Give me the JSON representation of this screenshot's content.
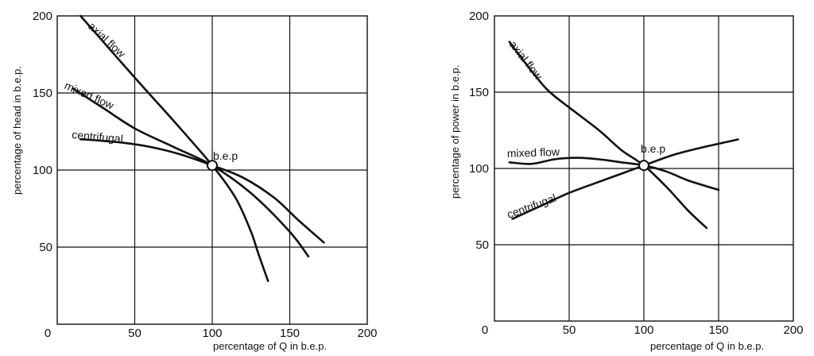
{
  "chart_data": [
    {
      "type": "line",
      "title": "",
      "xlabel": "percentage of Q in b.e.p.",
      "ylabel": "percentage of head in b.e.p.",
      "xlim": [
        0,
        200
      ],
      "ylim": [
        0,
        200
      ],
      "x_ticks": [
        0,
        50,
        100,
        150,
        200
      ],
      "y_ticks": [
        50,
        100,
        150,
        200
      ],
      "grid": true,
      "legend": "none",
      "series": [
        {
          "name": "axial flow",
          "points": [
            [
              15,
              200
            ],
            [
              50,
              160
            ],
            [
              75,
              132
            ],
            [
              100,
              103
            ],
            [
              115,
              82
            ],
            [
              125,
              60
            ],
            [
              130,
              45
            ],
            [
              136,
              28
            ]
          ]
        },
        {
          "name": "mixed flow",
          "points": [
            [
              10,
              153
            ],
            [
              30,
              140
            ],
            [
              50,
              127
            ],
            [
              75,
              115
            ],
            [
              100,
              103
            ],
            [
              125,
              85
            ],
            [
              150,
              60
            ],
            [
              162,
              44
            ]
          ]
        },
        {
          "name": "centrifugal",
          "points": [
            [
              15,
              120
            ],
            [
              40,
              118
            ],
            [
              60,
              115
            ],
            [
              80,
              110
            ],
            [
              100,
              103
            ],
            [
              120,
              95
            ],
            [
              140,
              82
            ],
            [
              155,
              68
            ],
            [
              172,
              53
            ]
          ]
        }
      ],
      "annotations": [
        {
          "text": "b.e.p",
          "x": 100,
          "y": 103,
          "marker": "open-circle"
        }
      ]
    },
    {
      "type": "line",
      "title": "",
      "xlabel": "percentage of Q in b.e.p.",
      "ylabel": "percentage of power in b.e.p.",
      "xlim": [
        0,
        200
      ],
      "ylim": [
        0,
        200
      ],
      "x_ticks": [
        0,
        50,
        100,
        150,
        200
      ],
      "y_ticks": [
        50,
        100,
        150,
        200
      ],
      "grid": true,
      "legend": "none",
      "series": [
        {
          "name": "axial flow",
          "points": [
            [
              10,
              183
            ],
            [
              20,
              170
            ],
            [
              35,
              152
            ],
            [
              50,
              140
            ],
            [
              70,
              125
            ],
            [
              85,
              112
            ],
            [
              100,
              102
            ],
            [
              115,
              88
            ],
            [
              130,
              72
            ],
            [
              142,
              61
            ]
          ]
        },
        {
          "name": "mixed flow",
          "points": [
            [
              10,
              104
            ],
            [
              25,
              103
            ],
            [
              40,
              106
            ],
            [
              55,
              107
            ],
            [
              70,
              106
            ],
            [
              85,
              104
            ],
            [
              100,
              102
            ],
            [
              115,
              98
            ],
            [
              130,
              92
            ],
            [
              150,
              86
            ]
          ]
        },
        {
          "name": "centrifugal",
          "points": [
            [
              12,
              67
            ],
            [
              30,
              75
            ],
            [
              50,
              84
            ],
            [
              75,
              93
            ],
            [
              100,
              102
            ],
            [
              120,
              109
            ],
            [
              140,
              114
            ],
            [
              163,
              119
            ]
          ]
        }
      ],
      "annotations": [
        {
          "text": "b.e.p",
          "x": 100,
          "y": 102,
          "marker": "open-circle"
        }
      ]
    }
  ]
}
